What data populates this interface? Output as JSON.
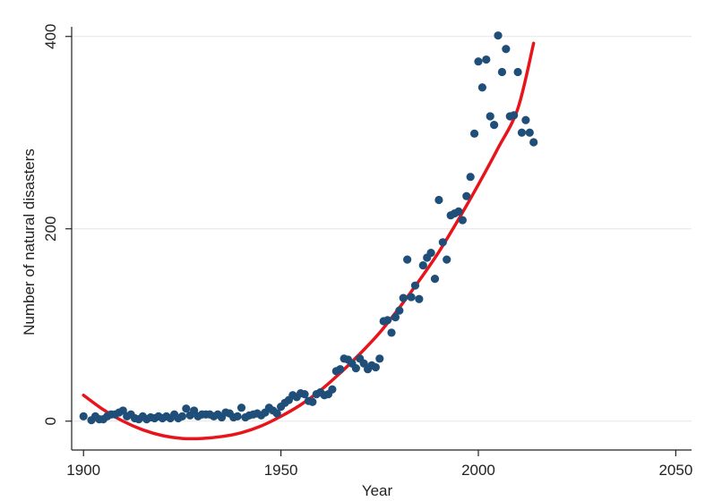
{
  "chart_data": {
    "type": "scatter",
    "xlabel": "Year",
    "ylabel": "Number of natural disasters",
    "xlim": [
      1897,
      2054
    ],
    "ylim": [
      -30,
      410
    ],
    "xticks": [
      1900,
      1950,
      2000,
      2050
    ],
    "yticks": [
      0,
      200,
      400
    ],
    "grid": "horizontal",
    "colors": {
      "points": "#1f4e79",
      "fit": "#e8141c",
      "grid": "#e6e6e6",
      "axis": "#222222"
    },
    "series": [
      {
        "kind": "points",
        "x": [
          1900,
          1902,
          1903,
          1904,
          1905,
          1906,
          1907,
          1908,
          1909,
          1910,
          1911,
          1912,
          1913,
          1914,
          1915,
          1916,
          1917,
          1918,
          1919,
          1920,
          1921,
          1922,
          1923,
          1924,
          1925,
          1926,
          1927,
          1928,
          1929,
          1930,
          1931,
          1932,
          1933,
          1934,
          1935,
          1936,
          1937,
          1938,
          1939,
          1940,
          1941,
          1942,
          1943,
          1944,
          1945,
          1946,
          1947,
          1948,
          1949,
          1950,
          1951,
          1952,
          1953,
          1954,
          1955,
          1956,
          1957,
          1958,
          1959,
          1960,
          1961,
          1962,
          1963,
          1964,
          1965,
          1966,
          1967,
          1968,
          1969,
          1970,
          1971,
          1972,
          1973,
          1974,
          1975,
          1976,
          1977,
          1978,
          1979,
          1980,
          1981,
          1982,
          1983,
          1984,
          1985,
          1986,
          1987,
          1988,
          1989,
          1990,
          1991,
          1992,
          1993,
          1994,
          1995,
          1996,
          1997,
          1998,
          1999,
          2000,
          2001,
          2002,
          2003,
          2004,
          2005,
          2006,
          2007,
          2008,
          2009,
          2010,
          2011,
          2012,
          2013,
          2014
        ],
        "y": [
          5,
          1,
          5,
          2,
          2,
          5,
          7,
          7,
          9,
          11,
          5,
          7,
          3,
          2,
          5,
          2,
          4,
          3,
          5,
          3,
          5,
          3,
          7,
          3,
          5,
          13,
          6,
          11,
          5,
          7,
          7,
          7,
          5,
          7,
          4,
          9,
          8,
          4,
          5,
          14,
          4,
          6,
          7,
          8,
          6,
          9,
          14,
          11,
          8,
          15,
          19,
          22,
          27,
          25,
          29,
          28,
          21,
          20,
          28,
          30,
          27,
          28,
          33,
          52,
          54,
          65,
          64,
          60,
          55,
          65,
          60,
          54,
          58,
          56,
          65,
          104,
          105,
          92,
          108,
          115,
          128,
          168,
          129,
          141,
          127,
          162,
          170,
          175,
          148,
          230,
          186,
          168,
          214,
          216,
          218,
          209,
          234,
          254,
          299,
          374,
          347,
          376,
          317,
          308,
          401,
          363,
          387,
          317,
          318,
          363,
          300,
          313,
          300,
          290
        ]
      },
      {
        "kind": "fit",
        "x": [
          1900,
          1905,
          1910,
          1915,
          1920,
          1925,
          1930,
          1935,
          1940,
          1945,
          1950,
          1955,
          1960,
          1965,
          1970,
          1975,
          1980,
          1985,
          1990,
          1995,
          2000,
          2005,
          2010,
          2014
        ],
        "y": [
          27,
          12,
          0,
          -9,
          -15,
          -18,
          -18,
          -16,
          -12,
          -5,
          5,
          17,
          32,
          50,
          70,
          92,
          118,
          146,
          176,
          210,
          246,
          284,
          325,
          393
        ]
      }
    ]
  }
}
